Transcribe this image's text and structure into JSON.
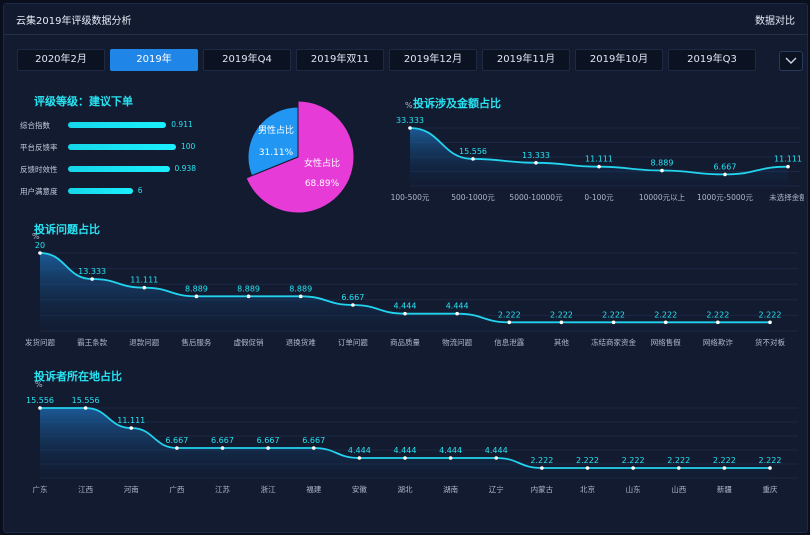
{
  "header": {
    "title": "云集2019年评级数据分析",
    "compare_label": "数据对比"
  },
  "tabs": [
    "2020年2月",
    "2019年",
    "2019年Q4",
    "2019年双11",
    "2019年12月",
    "2019年11月",
    "2019年10月",
    "2019年Q3"
  ],
  "active_tab": 1,
  "colors": {
    "accent": "#27e3f2",
    "tab_active": "#1f86e8",
    "male": "#2196f3",
    "female": "#e63bd7"
  },
  "chart_data": [
    {
      "type": "bar",
      "title": "评级等级：建议下单",
      "categories": [
        "综合指数",
        "平台反馈率",
        "反馈时效性",
        "用户满意度"
      ],
      "values": [
        0.911,
        100,
        0.938,
        6
      ],
      "display_values": [
        "0.911",
        "100",
        "0.938",
        "6"
      ],
      "bar_fill": [
        0.91,
        1.0,
        0.94,
        0.6
      ]
    },
    {
      "type": "pie",
      "categories": [
        "男性占比",
        "女性占比"
      ],
      "values": [
        31.11,
        68.89
      ],
      "display_values": [
        "31.11%",
        "68.89%"
      ]
    },
    {
      "type": "area",
      "title": "投诉涉及金额占比",
      "ylabel": "%",
      "categories": [
        "100-500元",
        "500-1000元",
        "5000-10000元",
        "0-100元",
        "10000元以上",
        "1000元-5000元",
        "未选择金额"
      ],
      "values": [
        33.333,
        15.556,
        13.333,
        11.111,
        8.889,
        6.667,
        11.111
      ],
      "labels": [
        "33.333",
        "15.556",
        "13.333",
        "11.111",
        "8.889",
        "6.667",
        "11.111"
      ]
    },
    {
      "type": "area",
      "title": "投诉问题占比",
      "ylabel": "%",
      "categories": [
        "发货问题",
        "霸王条款",
        "退款问题",
        "售后服务",
        "虚假促销",
        "退换货难",
        "订单问题",
        "商品质量",
        "物流问题",
        "信息泄露",
        "其他",
        "冻结商家资金",
        "网络售假",
        "网络欺诈",
        "货不对板"
      ],
      "values": [
        20,
        13.333,
        11.111,
        8.889,
        8.889,
        8.889,
        6.667,
        4.444,
        4.444,
        2.222,
        2.222,
        2.222,
        2.222,
        2.222,
        2.222
      ],
      "labels": [
        "20",
        "13.333",
        "11.111",
        "8.889",
        "8.889",
        "8.889",
        "6.667",
        "4.444",
        "4.444",
        "2.222",
        "2.222",
        "2.222",
        "2.222",
        "2.222",
        "2.222"
      ]
    },
    {
      "type": "area",
      "title": "投诉者所在地占比",
      "ylabel": "%",
      "categories": [
        "广东",
        "江西",
        "河南",
        "广西",
        "江苏",
        "浙江",
        "福建",
        "安徽",
        "湖北",
        "湖南",
        "辽宁",
        "内蒙古",
        "北京",
        "山东",
        "山西",
        "新疆",
        "重庆"
      ],
      "values": [
        15.556,
        15.556,
        11.111,
        6.667,
        6.667,
        6.667,
        6.667,
        4.444,
        4.444,
        4.444,
        4.444,
        2.222,
        2.222,
        2.222,
        2.222,
        2.222,
        2.222
      ],
      "labels": [
        "15.556",
        "15.556",
        "11.111",
        "6.667",
        "6.667",
        "6.667",
        "6.667",
        "4.444",
        "4.444",
        "4.444",
        "4.444",
        "2.222",
        "2.222",
        "2.222",
        "2.222",
        "2.222",
        "2.222"
      ]
    }
  ]
}
